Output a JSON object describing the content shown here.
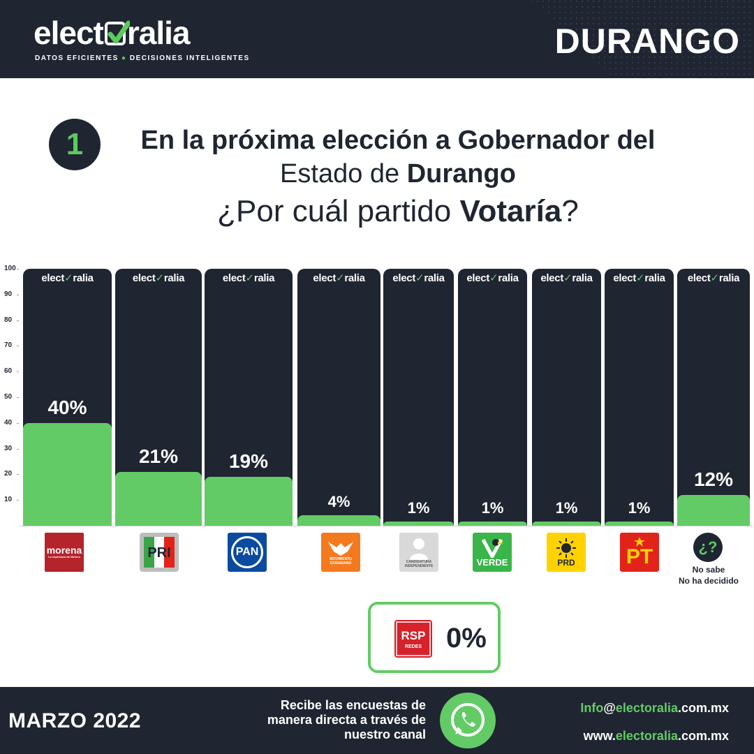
{
  "header": {
    "brand": "electoralia",
    "brand_prefix": "elect",
    "brand_suffix": "ralia",
    "tagline_left": "DATOS EFICIENTES",
    "tagline_sep": "●",
    "tagline_right": "DECISIONES INTELIGENTES",
    "region": "DURANGO"
  },
  "question": {
    "number": "1",
    "line1": "En la próxima elección a Gobernador del",
    "line2_a": "Estado de ",
    "line2_b": "Durango",
    "line3_a": "¿Por cuál partido ",
    "line3_b": "Votaría",
    "line3_c": "?"
  },
  "chart_data": {
    "type": "bar",
    "title": "",
    "xlabel": "",
    "ylabel": "",
    "ylim": [
      0,
      100
    ],
    "yticks": [
      10,
      20,
      30,
      40,
      50,
      60,
      70,
      80,
      90,
      100
    ],
    "categories": [
      "morena",
      "PRI",
      "PAN",
      "Movimiento Ciudadano",
      "Candidatura Independiente",
      "Verde",
      "PRD",
      "PT",
      "No sabe No ha decidido"
    ],
    "values": [
      40,
      21,
      19,
      4,
      1,
      1,
      1,
      1,
      12
    ],
    "value_labels": [
      "40%",
      "21%",
      "19%",
      "4%",
      "1%",
      "1%",
      "1%",
      "1%",
      "12%"
    ],
    "column_watermark": "electoralia",
    "bar_color": "#63cb66",
    "column_color": "#1f2531"
  },
  "parties": {
    "morena": {
      "name": "morena",
      "sub": "La esperanza de México",
      "color": "#b5232b"
    },
    "pri": {
      "name": "PRI",
      "color": "#bdbdbd"
    },
    "pan": {
      "name": "PAN",
      "color": "#0a4aa0"
    },
    "mc": {
      "name": "MOVIMIENTO CIUDADANO",
      "color": "#f47a20"
    },
    "indep": {
      "name": "CANDIDATURA INDEPENDIENTE",
      "color": "#cfcfcf"
    },
    "verde": {
      "name": "VERDE",
      "color": "#3ab54a"
    },
    "prd": {
      "name": "PRD",
      "color": "#ffd200"
    },
    "pt": {
      "name": "PT",
      "color": "#e2231a"
    },
    "nosabe": {
      "symbol": "¿?",
      "line1": "No sabe",
      "line2": "No ha decidido"
    }
  },
  "rsp": {
    "logo_text": "RSP",
    "logo_sub": "REDES",
    "value": "0%",
    "color": "#d6222a"
  },
  "footer": {
    "date": "MARZO 2022",
    "cta_line1": "Recibe las encuestas de",
    "cta_line2": "manera directa a través de",
    "cta_line3": "nuestro canal",
    "email_a": "Info",
    "email_b": "@",
    "email_c": "electoralia",
    "email_d": ".com.mx",
    "web_a": "www.",
    "web_b": "electoralia",
    "web_c": ".com.mx"
  },
  "colors": {
    "navy": "#1f2531",
    "green": "#63cb66"
  }
}
